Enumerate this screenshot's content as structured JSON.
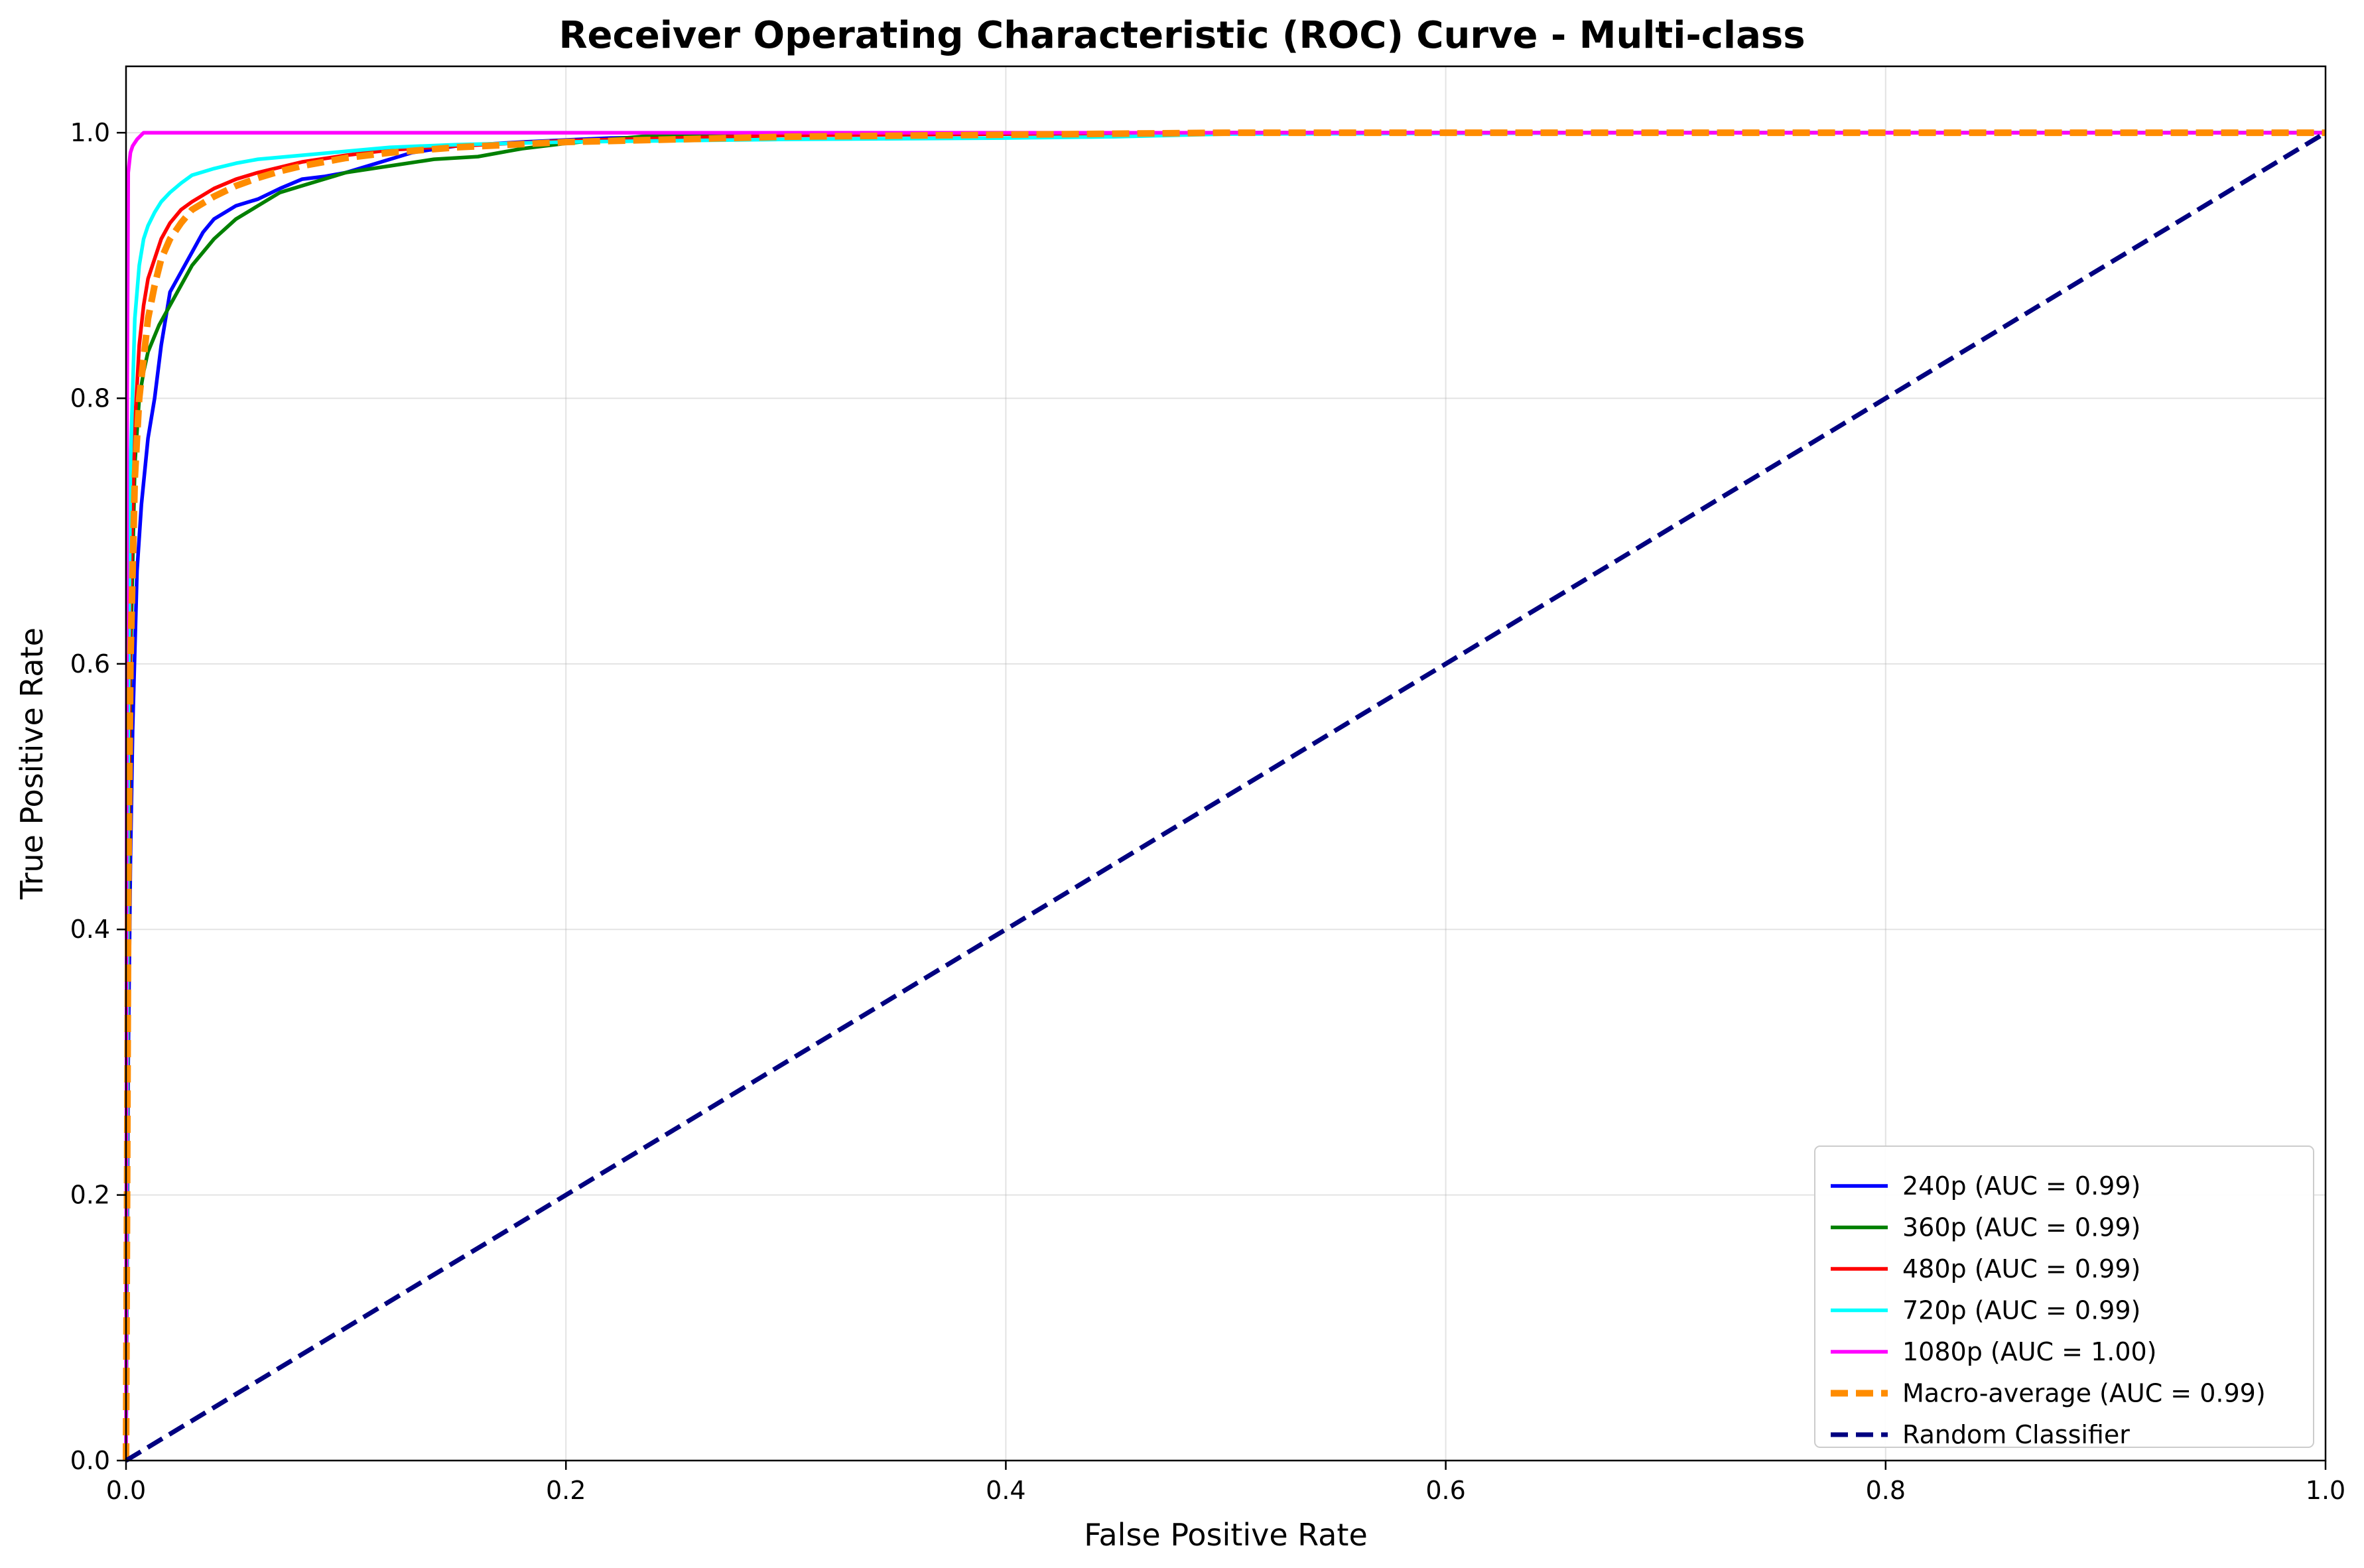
{
  "chart_data": {
    "type": "line",
    "title": "Receiver Operating Characteristic (ROC) Curve - Multi-class",
    "xlabel": "False Positive Rate",
    "ylabel": "True Positive Rate",
    "xlim": [
      0.0,
      1.0
    ],
    "ylim": [
      0.0,
      1.05
    ],
    "xticks": [
      "0.0",
      "0.2",
      "0.4",
      "0.6",
      "0.8",
      "1.0"
    ],
    "yticks": [
      "0.0",
      "0.2",
      "0.4",
      "0.6",
      "0.8",
      "1.0"
    ],
    "grid": true,
    "legend_position": "lower-right",
    "series": [
      {
        "name": "240p (AUC = 0.99)",
        "color": "#0000ff",
        "style": "solid",
        "x": [
          0.0,
          0.001,
          0.002,
          0.003,
          0.005,
          0.007,
          0.01,
          0.013,
          0.016,
          0.02,
          0.025,
          0.03,
          0.035,
          0.04,
          0.045,
          0.05,
          0.06,
          0.07,
          0.08,
          0.09,
          0.1,
          0.11,
          0.12,
          0.13,
          0.15,
          0.18,
          0.22,
          0.3,
          0.5,
          0.7,
          1.0
        ],
        "y": [
          0.0,
          0.3,
          0.45,
          0.55,
          0.67,
          0.72,
          0.77,
          0.8,
          0.84,
          0.88,
          0.895,
          0.91,
          0.925,
          0.935,
          0.94,
          0.945,
          0.95,
          0.958,
          0.965,
          0.967,
          0.97,
          0.975,
          0.98,
          0.985,
          0.99,
          0.993,
          0.996,
          0.998,
          1.0,
          1.0,
          1.0
        ]
      },
      {
        "name": "360p (AUC = 0.99)",
        "color": "#008000",
        "style": "solid",
        "x": [
          0.0,
          0.001,
          0.002,
          0.004,
          0.006,
          0.008,
          0.01,
          0.015,
          0.02,
          0.025,
          0.03,
          0.04,
          0.05,
          0.06,
          0.07,
          0.08,
          0.09,
          0.1,
          0.12,
          0.14,
          0.16,
          0.18,
          0.2,
          0.24,
          0.3,
          0.5,
          0.7,
          1.0
        ],
        "y": [
          0.0,
          0.4,
          0.6,
          0.75,
          0.8,
          0.82,
          0.835,
          0.855,
          0.87,
          0.885,
          0.9,
          0.92,
          0.935,
          0.945,
          0.955,
          0.96,
          0.965,
          0.97,
          0.975,
          0.98,
          0.982,
          0.988,
          0.992,
          0.998,
          0.999,
          1.0,
          1.0,
          1.0
        ]
      },
      {
        "name": "480p (AUC = 0.99)",
        "color": "#ff0000",
        "style": "solid",
        "x": [
          0.0,
          0.001,
          0.002,
          0.004,
          0.006,
          0.008,
          0.01,
          0.013,
          0.016,
          0.02,
          0.025,
          0.03,
          0.04,
          0.05,
          0.06,
          0.07,
          0.08,
          0.1,
          0.12,
          0.15,
          0.2,
          0.3,
          0.5,
          0.7,
          1.0
        ],
        "y": [
          0.0,
          0.45,
          0.65,
          0.78,
          0.84,
          0.87,
          0.89,
          0.905,
          0.92,
          0.932,
          0.942,
          0.948,
          0.958,
          0.965,
          0.97,
          0.974,
          0.978,
          0.983,
          0.987,
          0.99,
          0.994,
          0.998,
          1.0,
          1.0,
          1.0
        ]
      },
      {
        "name": "720p (AUC = 0.99)",
        "color": "#00ffff",
        "style": "solid",
        "x": [
          0.0,
          0.001,
          0.002,
          0.004,
          0.006,
          0.008,
          0.01,
          0.013,
          0.016,
          0.02,
          0.025,
          0.03,
          0.04,
          0.05,
          0.06,
          0.08,
          0.1,
          0.12,
          0.15,
          0.2,
          0.3,
          0.4,
          0.45,
          0.5,
          0.7,
          1.0
        ],
        "y": [
          0.0,
          0.55,
          0.75,
          0.86,
          0.9,
          0.92,
          0.93,
          0.94,
          0.948,
          0.955,
          0.962,
          0.968,
          0.973,
          0.977,
          0.98,
          0.983,
          0.986,
          0.989,
          0.991,
          0.993,
          0.995,
          0.996,
          0.997,
          0.999,
          1.0,
          1.0
        ]
      },
      {
        "name": "1080p (AUC = 1.00)",
        "color": "#ff00ff",
        "style": "solid",
        "x": [
          0.0,
          0.0005,
          0.001,
          0.002,
          0.003,
          0.005,
          0.008,
          0.01,
          0.5,
          1.0
        ],
        "y": [
          0.0,
          0.8,
          0.97,
          0.985,
          0.99,
          0.995,
          1.0,
          1.0,
          1.0,
          1.0
        ]
      },
      {
        "name": "Macro-average (AUC = 0.99)",
        "color": "#ff8c00",
        "style": "dashed-thick",
        "x": [
          0.0,
          0.001,
          0.002,
          0.004,
          0.006,
          0.008,
          0.01,
          0.013,
          0.016,
          0.02,
          0.025,
          0.03,
          0.04,
          0.05,
          0.06,
          0.07,
          0.08,
          0.1,
          0.12,
          0.15,
          0.2,
          0.3,
          0.5,
          0.7,
          1.0
        ],
        "y": [
          0.0,
          0.42,
          0.6,
          0.74,
          0.8,
          0.83,
          0.86,
          0.885,
          0.905,
          0.92,
          0.932,
          0.942,
          0.952,
          0.96,
          0.966,
          0.971,
          0.975,
          0.981,
          0.985,
          0.989,
          0.993,
          0.997,
          1.0,
          1.0,
          1.0
        ]
      },
      {
        "name": "Random Classifier",
        "color": "#000080",
        "style": "dashed",
        "x": [
          0.0,
          1.0
        ],
        "y": [
          0.0,
          1.0
        ]
      }
    ]
  }
}
